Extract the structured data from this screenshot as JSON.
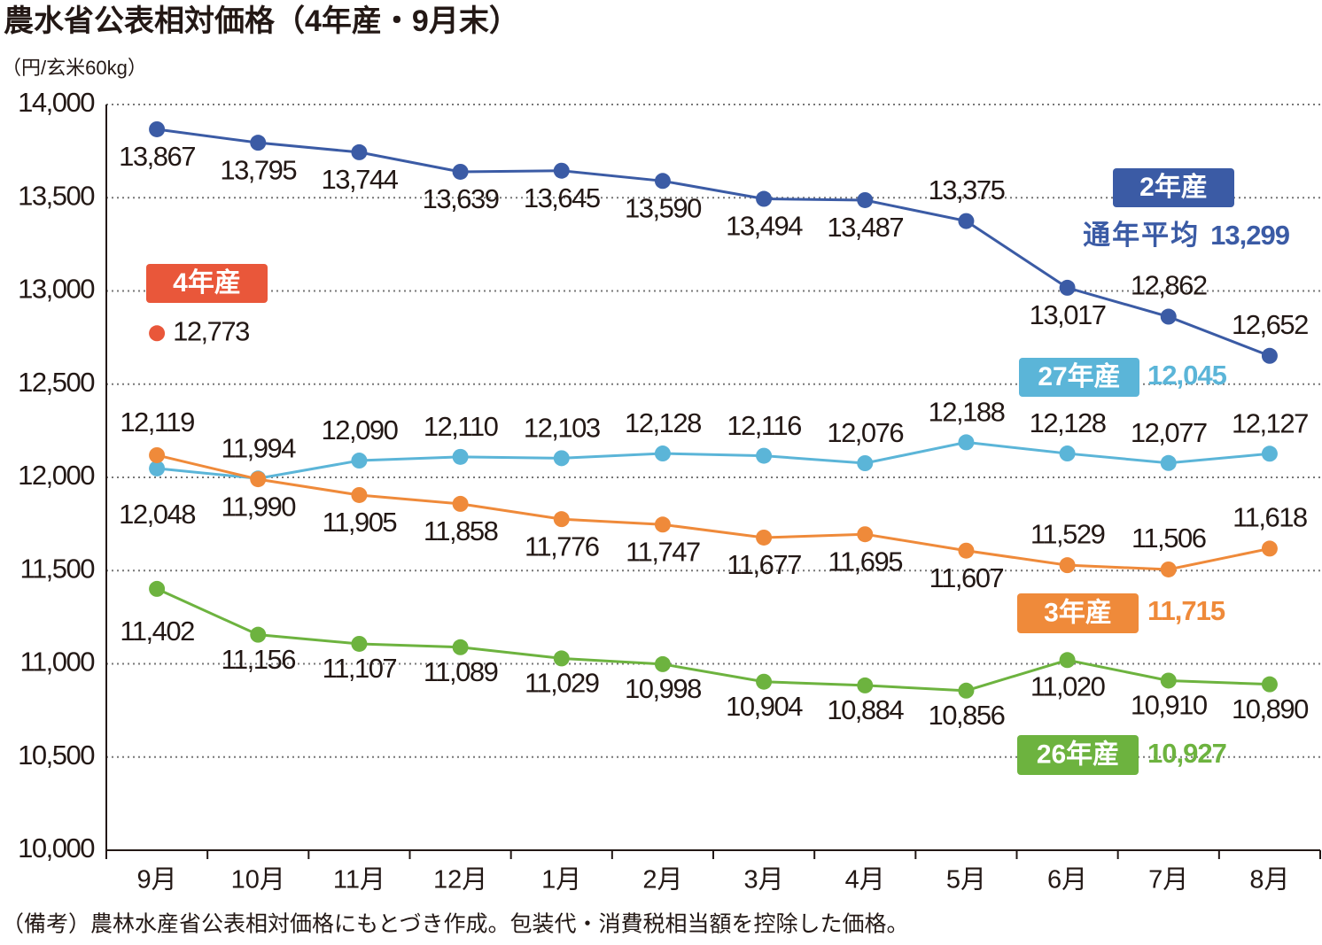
{
  "chart_data": {
    "type": "line",
    "title": "農水省公表相対価格（4年産・9月末）",
    "y_unit": "（円/玄米60kg）",
    "note": "（備考）農林水産省公表相対価格にもとづき作成。包装代・消費税相当額を控除した価格。",
    "categories": [
      "9月",
      "10月",
      "11月",
      "12月",
      "1月",
      "2月",
      "3月",
      "4月",
      "5月",
      "6月",
      "7月",
      "8月"
    ],
    "ylim": [
      10000,
      14000
    ],
    "yticks": [
      {
        "value": 10000,
        "label": "10,000"
      },
      {
        "value": 10500,
        "label": "10,500"
      },
      {
        "value": 11000,
        "label": "11,000"
      },
      {
        "value": 11500,
        "label": "11,500"
      },
      {
        "value": 12000,
        "label": "12,000"
      },
      {
        "value": 12500,
        "label": "12,500"
      },
      {
        "value": 13000,
        "label": "13,000"
      },
      {
        "value": 13500,
        "label": "13,500"
      },
      {
        "value": 14000,
        "label": "14,000"
      }
    ],
    "grid": true,
    "series": [
      {
        "name": "2年産",
        "color": "#3b5ba5",
        "values": [
          13867,
          13795,
          13744,
          13639,
          13645,
          13590,
          13494,
          13487,
          13375,
          13017,
          12862,
          12652
        ],
        "value_labels": [
          "13,867",
          "13,795",
          "13,744",
          "13,639",
          "13,645",
          "13,590",
          "13,494",
          "13,487",
          "13,375",
          "13,017",
          "12,862",
          "12,652"
        ],
        "average_caption": "通年平均",
        "average": {
          "value": 13299,
          "label": "13,299"
        }
      },
      {
        "name": "27年産",
        "color": "#5bb5d8",
        "values": [
          12048,
          11994,
          12090,
          12110,
          12103,
          12128,
          12116,
          12076,
          12188,
          12128,
          12077,
          12127
        ],
        "value_labels": [
          "12,048",
          "11,994",
          "12,090",
          "12,110",
          "12,103",
          "12,128",
          "12,116",
          "12,076",
          "12,188",
          "12,128",
          "12,077",
          "12,127"
        ],
        "average": {
          "value": 12045,
          "label": "12,045"
        }
      },
      {
        "name": "3年産",
        "color": "#ef8a3a",
        "values": [
          12119,
          11990,
          11905,
          11858,
          11776,
          11747,
          11677,
          11695,
          11607,
          11529,
          11506,
          11618
        ],
        "value_labels": [
          "12,119",
          "11,990",
          "11,905",
          "11,858",
          "11,776",
          "11,747",
          "11,677",
          "11,695",
          "11,607",
          "11,529",
          "11,506",
          "11,618"
        ],
        "average": {
          "value": 11715,
          "label": "11,715"
        }
      },
      {
        "name": "26年産",
        "color": "#6db33f",
        "values": [
          11402,
          11156,
          11107,
          11089,
          11029,
          10998,
          10904,
          10884,
          10856,
          11020,
          10910,
          10890
        ],
        "value_labels": [
          "11,402",
          "11,156",
          "11,107",
          "11,089",
          "11,029",
          "10,998",
          "10,904",
          "10,884",
          "10,856",
          "11,020",
          "10,910",
          "10,890"
        ],
        "average": {
          "value": 10927,
          "label": "10,927"
        }
      },
      {
        "name": "4年産",
        "color": "#e9573a",
        "values": [
          12773,
          null,
          null,
          null,
          null,
          null,
          null,
          null,
          null,
          null,
          null,
          null
        ],
        "value_labels": [
          "12,773",
          null,
          null,
          null,
          null,
          null,
          null,
          null,
          null,
          null,
          null,
          null
        ]
      }
    ]
  }
}
